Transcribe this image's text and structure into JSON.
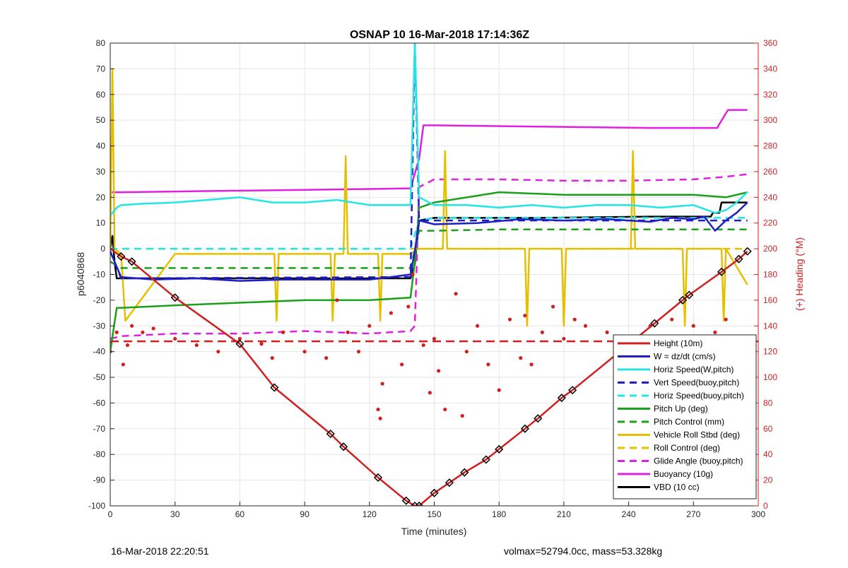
{
  "footer": {
    "timestamp": "16-Mar-2018 22:20:51",
    "volmax_mass": "volmax=52794.0cc, mass=53.328kg"
  },
  "chart_data": {
    "type": "line",
    "title": "OSNAP 10 16-Mar-2018 17:14:36Z",
    "xlabel": "Time (minutes)",
    "ylabel_left": "p6040868",
    "ylabel_right": "(+) Heading (°M)",
    "xlim": [
      0,
      300
    ],
    "ylim_left": [
      -100,
      80
    ],
    "ylim_right": [
      0,
      360
    ],
    "x_ticks": [
      0,
      30,
      60,
      90,
      120,
      150,
      180,
      210,
      240,
      270,
      300
    ],
    "y_ticks_left": [
      -100,
      -90,
      -80,
      -70,
      -60,
      -50,
      -40,
      -30,
      -20,
      -10,
      0,
      10,
      20,
      30,
      40,
      50,
      60,
      70,
      80
    ],
    "y_ticks_right": [
      0,
      20,
      40,
      60,
      80,
      100,
      120,
      140,
      160,
      180,
      200,
      220,
      240,
      260,
      280,
      300,
      320,
      340,
      360
    ],
    "grid": true,
    "legend_position": "bottom-right",
    "series": [
      {
        "name": "Height (10m)",
        "color": "#d11f1f",
        "style": "solid",
        "axis": "left",
        "x": [
          0,
          5,
          10,
          30,
          60,
          76,
          102,
          108,
          124,
          137,
          141,
          143,
          150,
          157,
          164,
          174,
          180,
          192,
          198,
          209,
          214,
          252,
          265,
          268,
          283,
          291,
          295
        ],
        "y": [
          0,
          -3,
          -5,
          -19,
          -37,
          -54,
          -72,
          -77,
          -89,
          -98,
          -100,
          -100,
          -95,
          -91,
          -87,
          -82,
          -78,
          -70,
          -66,
          -58,
          -55,
          -29,
          -20,
          -18,
          -9,
          -4,
          -1
        ]
      },
      {
        "name": "W = dz/dt (cm/s)",
        "color": "#1f1fc4",
        "style": "solid",
        "axis": "left",
        "x": [
          0,
          2,
          5,
          20,
          40,
          60,
          80,
          100,
          120,
          130,
          139,
          141,
          143,
          150,
          170,
          190,
          210,
          230,
          250,
          260,
          270,
          275,
          280,
          285,
          290,
          295
        ],
        "y": [
          -1,
          -5,
          -11,
          -12,
          -11.5,
          -12.5,
          -12,
          -12,
          -12,
          -11,
          -10,
          -1,
          11,
          9.5,
          10,
          11.5,
          11,
          11.5,
          10.5,
          12,
          11.5,
          12.5,
          7,
          11,
          14,
          18
        ]
      },
      {
        "name": "Horiz Speed(W,pitch)",
        "color": "#22e6e6",
        "style": "solid",
        "axis": "left",
        "x": [
          0,
          3,
          5,
          15,
          30,
          45,
          60,
          75,
          90,
          105,
          120,
          135,
          139,
          141,
          143,
          150,
          165,
          180,
          195,
          210,
          225,
          240,
          255,
          270,
          280,
          285,
          290,
          295
        ],
        "y": [
          13,
          16,
          17,
          17.5,
          18,
          19,
          20,
          18,
          18,
          19,
          17,
          17,
          17,
          80,
          20,
          17,
          17,
          16,
          17,
          16,
          17,
          17,
          16,
          17,
          14,
          15,
          18,
          22
        ]
      },
      {
        "name": "Vert Speed(buoy,pitch)",
        "color": "#1f1fc4",
        "style": "dashed",
        "axis": "left",
        "x": [
          0,
          5,
          139,
          141,
          143,
          150,
          295
        ],
        "y": [
          -1,
          -11.5,
          -11,
          80,
          11,
          11,
          11
        ]
      },
      {
        "name": "Horiz Speed(buoy,pitch)",
        "color": "#22e6e6",
        "style": "dashed",
        "axis": "left",
        "x": [
          0,
          5,
          139,
          143,
          150,
          295
        ],
        "y": [
          0,
          0,
          0,
          11,
          12,
          12
        ]
      },
      {
        "name": "Pitch Up (deg)",
        "color": "#1aa01a",
        "style": "solid",
        "axis": "left",
        "x": [
          0,
          3,
          5,
          30,
          60,
          90,
          120,
          139,
          141,
          143,
          150,
          180,
          210,
          240,
          270,
          285,
          295
        ],
        "y": [
          -40,
          -23,
          -23,
          -22,
          -21,
          -20,
          -20,
          -19,
          -5,
          16,
          18,
          22,
          21,
          21,
          21,
          20,
          22
        ]
      },
      {
        "name": "Pitch Control (mm)",
        "color": "#1aa01a",
        "style": "dashed",
        "axis": "left",
        "x": [
          0,
          5,
          139,
          143,
          150,
          180,
          240,
          295
        ],
        "y": [
          -5,
          -7.5,
          -7.5,
          7,
          7,
          7.5,
          7.5,
          7.5
        ]
      },
      {
        "name": "Vehicle Roll Stbd (deg)",
        "color": "#e6c000",
        "style": "solid",
        "axis": "left",
        "x": [
          0,
          1,
          2,
          5,
          7,
          30,
          60,
          76,
          77,
          78,
          102,
          103,
          104,
          108,
          109,
          110,
          124,
          125,
          126,
          139,
          141,
          143,
          150,
          154,
          155,
          156,
          160,
          180,
          192,
          193,
          194,
          209,
          210,
          211,
          241,
          242,
          243,
          265,
          266,
          267,
          283,
          284,
          285,
          295
        ],
        "y": [
          0,
          70,
          0,
          -2,
          -28,
          -2,
          -2,
          -2,
          -28,
          -2,
          -2,
          -28,
          -2,
          -2,
          36,
          -2,
          -2,
          -28,
          -2,
          -2,
          -1,
          0,
          0,
          0,
          38,
          0,
          0,
          0,
          0,
          -30,
          0,
          0,
          -30,
          0,
          0,
          38,
          0,
          0,
          -30,
          0,
          0,
          -28,
          0,
          -14
        ]
      },
      {
        "name": "Roll Control (deg)",
        "color": "#e6c000",
        "style": "dashed",
        "axis": "left",
        "x": [
          0,
          5,
          139,
          143,
          150,
          295
        ],
        "y": [
          0,
          0,
          0,
          0,
          0,
          0
        ]
      },
      {
        "name": "Glide Angle (buoy,pitch)",
        "color": "#e020e0",
        "style": "dashed",
        "axis": "left",
        "x": [
          0,
          5,
          30,
          60,
          90,
          120,
          139,
          141,
          143,
          150,
          180,
          210,
          240,
          270,
          285,
          295
        ],
        "y": [
          -35,
          -34,
          -33,
          -33,
          -32,
          -33,
          -32,
          -30,
          24,
          27,
          27,
          26.5,
          26.5,
          27,
          28,
          29
        ]
      },
      {
        "name": "Buoyancy (10g)",
        "color": "#e020e0",
        "style": "solid",
        "axis": "left",
        "x": [
          0,
          1,
          5,
          50,
          100,
          139,
          143,
          145,
          150,
          200,
          250,
          281,
          282,
          286,
          295
        ],
        "y": [
          22,
          22,
          22,
          22.5,
          23,
          23.5,
          35,
          48,
          48,
          47.5,
          47,
          47,
          48.5,
          54,
          54
        ]
      },
      {
        "name": "VBD (10 cc)",
        "color": "#000000",
        "style": "solid",
        "axis": "left",
        "x": [
          0,
          1,
          2,
          3,
          139,
          141,
          143,
          150,
          200,
          250,
          278,
          279,
          282,
          283,
          295
        ],
        "y": [
          0,
          5,
          -5,
          -11.5,
          -11.5,
          -6,
          11,
          12,
          12,
          12.5,
          12.5,
          14,
          14,
          18,
          18
        ]
      }
    ],
    "heading_reference": {
      "value": 128,
      "axis": "right"
    },
    "heading_points": {
      "axis": "right",
      "x": [
        0,
        3,
        6,
        8,
        10,
        15,
        20,
        30,
        40,
        50,
        60,
        70,
        75,
        80,
        90,
        100,
        105,
        110,
        115,
        120,
        124,
        125,
        126,
        130,
        135,
        138,
        140,
        145,
        148,
        150,
        152,
        155,
        160,
        163,
        165,
        170,
        175,
        180,
        185,
        190,
        192,
        195,
        200,
        205,
        210,
        215,
        220,
        230,
        240,
        250,
        260,
        265,
        270,
        275,
        280,
        285,
        290,
        295
      ],
      "y": [
        120,
        135,
        110,
        125,
        140,
        135,
        138,
        130,
        125,
        120,
        130,
        126,
        115,
        135,
        120,
        115,
        160,
        135,
        120,
        140,
        75,
        68,
        95,
        150,
        110,
        155,
        180,
        125,
        88,
        130,
        105,
        75,
        165,
        70,
        120,
        140,
        110,
        90,
        145,
        115,
        148,
        110,
        135,
        155,
        130,
        145,
        140,
        135,
        130,
        140,
        145,
        130,
        140,
        125,
        135,
        145,
        120,
        85
      ]
    }
  }
}
